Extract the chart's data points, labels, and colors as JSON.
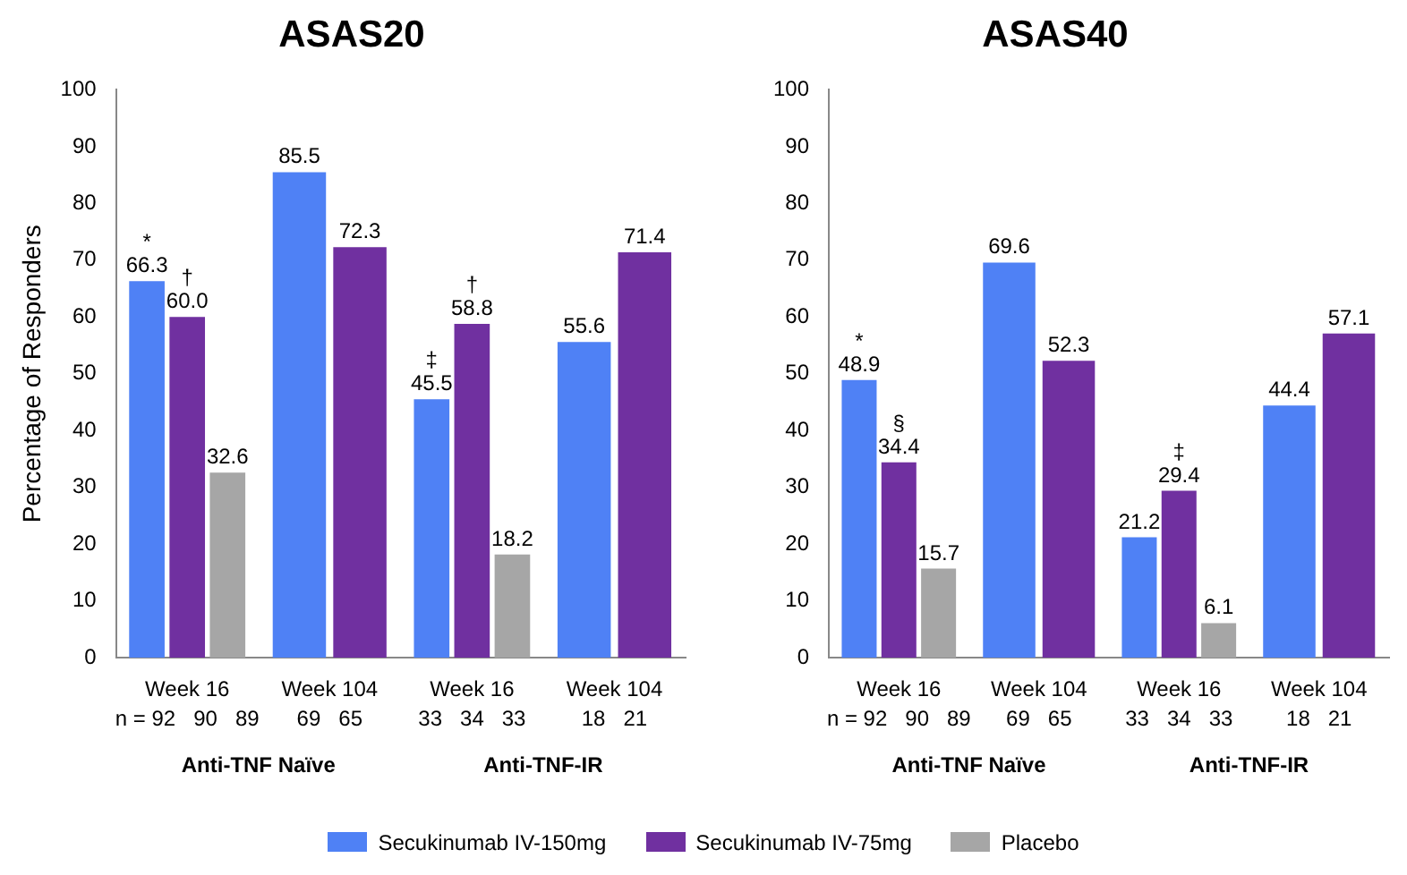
{
  "chart_data": [
    {
      "type": "bar",
      "title": "ASAS20",
      "ylabel": "Percentage of Responders",
      "categories": [
        "Week 16",
        "Week 104",
        "Week 16",
        "Week 104"
      ],
      "ylim": [
        0,
        100
      ],
      "yticks": [
        0,
        10,
        20,
        30,
        40,
        50,
        60,
        70,
        80,
        90,
        100
      ],
      "grid": false,
      "legend": "bottom",
      "series": [
        {
          "name": "Secukinumab IV-150mg",
          "color": "#4f81f5",
          "values": [
            66.3,
            85.5,
            45.5,
            55.6
          ],
          "value_labels": [
            "*\n66.3",
            "85.5",
            "‡\n45.5",
            "55.6"
          ]
        },
        {
          "name": "Secukinumab IV-75mg",
          "color": "#7030a0",
          "values": [
            60.0,
            72.3,
            58.8,
            71.4
          ],
          "value_labels": [
            "†\n60.0",
            "72.3",
            "†\n58.8",
            "71.4"
          ]
        },
        {
          "name": "Placebo",
          "color": "#a6a6a6",
          "values": [
            32.6,
            null,
            18.2,
            null
          ],
          "value_labels": [
            "32.6",
            null,
            "18.2",
            null
          ]
        }
      ],
      "annotations": [
        "n = 92   90   89",
        "69   65",
        "33   34   33",
        "18   21",
        "Anti-TNF Naïve",
        "Anti-TNF-IR"
      ]
    },
    {
      "type": "bar",
      "title": "ASAS40",
      "categories": [
        "Week 16",
        "Week 104",
        "Week 16",
        "Week 104"
      ],
      "ylim": [
        0,
        100
      ],
      "yticks": [
        0,
        10,
        20,
        30,
        40,
        50,
        60,
        70,
        80,
        90,
        100
      ],
      "grid": false,
      "series": [
        {
          "color": "#4f81f5",
          "values": [
            48.9,
            69.6,
            21.2,
            44.4
          ],
          "value_labels": [
            "*\n48.9",
            "69.6",
            "21.2",
            "44.4"
          ]
        },
        {
          "color": "#7030a0",
          "values": [
            34.4,
            52.3,
            29.4,
            57.1
          ],
          "value_labels": [
            "§\n34.4",
            "52.3",
            "‡\n29.4",
            "57.1"
          ]
        },
        {
          "color": "#a6a6a6",
          "values": [
            15.7,
            null,
            6.1,
            null
          ],
          "value_labels": [
            "15.7",
            null,
            "6.1",
            null
          ]
        }
      ],
      "annotations": [
        "n = 92   90   89",
        "69   65",
        "33   34   33",
        "18   21",
        "Anti-TNF Naïve",
        "Anti-TNF-IR"
      ]
    }
  ]
}
